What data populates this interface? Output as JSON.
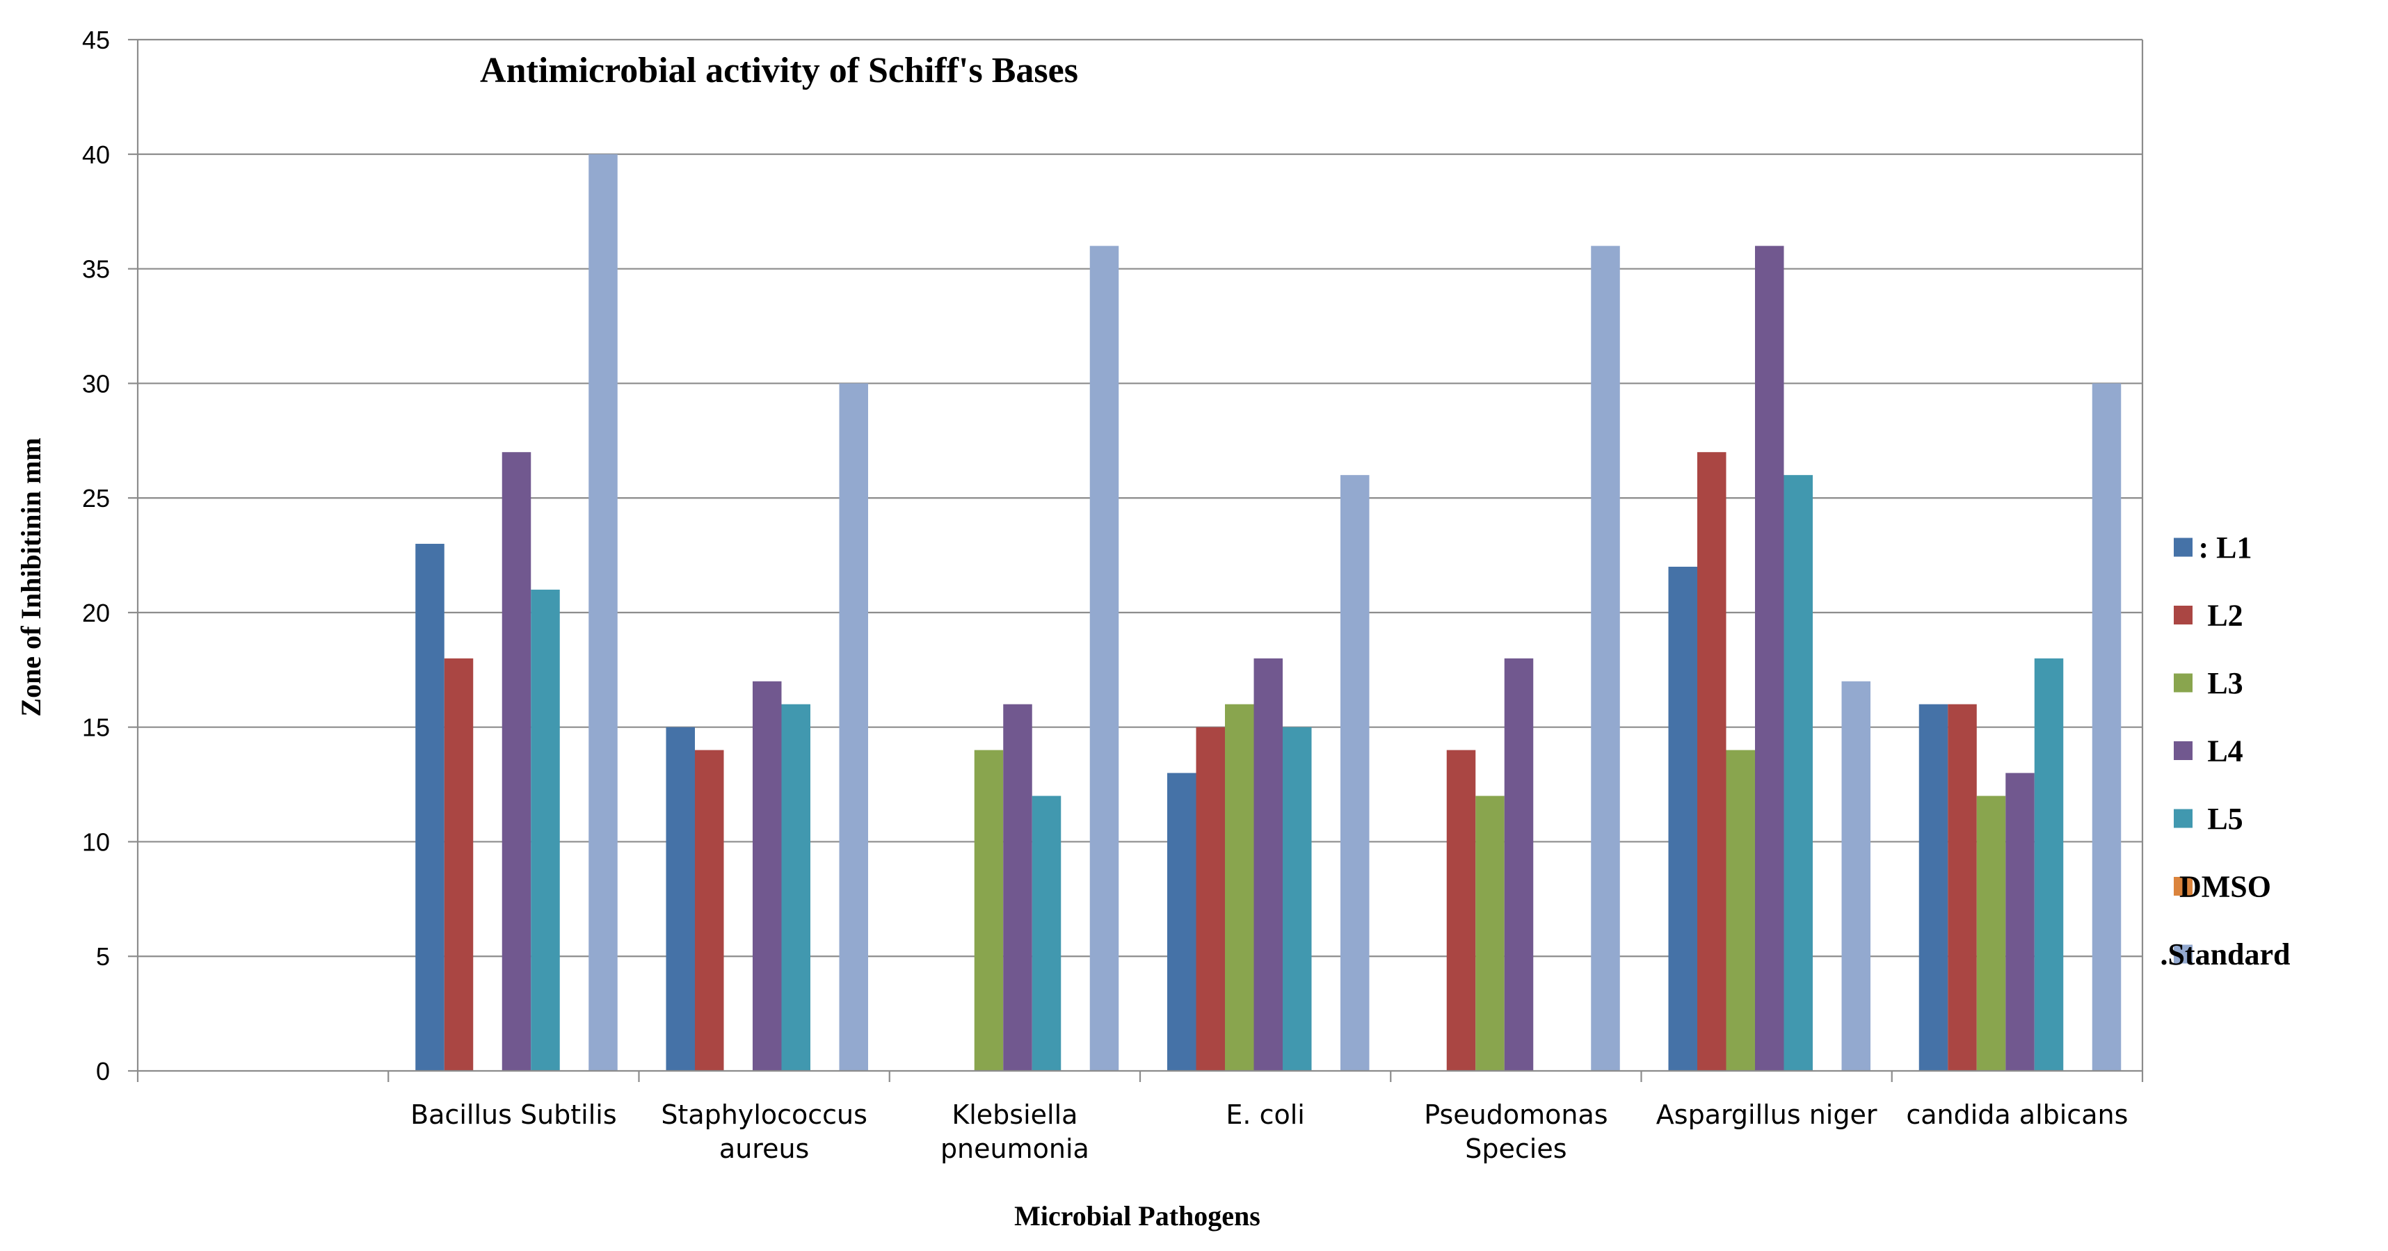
{
  "chart_data": {
    "type": "bar",
    "title": "Antimicrobial  activity of Schiff's Bases",
    "xlabel": "Microbial  Pathogens",
    "ylabel": "Zone of Inhibitinin  mm",
    "ylim": [
      0,
      45
    ],
    "ytick_step": 5,
    "yticks": [
      "0",
      "5",
      "10",
      "15",
      "20",
      "25",
      "30",
      "35",
      "40",
      "45"
    ],
    "grid": true,
    "legend_position": "right",
    "categories": [
      [
        ""
      ],
      [
        "Bacillus Subtilis"
      ],
      [
        "Staphylococcus",
        "aureus"
      ],
      [
        "Klebsiella",
        "pneumonia"
      ],
      [
        "E. coli"
      ],
      [
        "Pseudomonas",
        "Species"
      ],
      [
        "Aspargillus niger"
      ],
      [
        "candida albicans"
      ]
    ],
    "series": [
      {
        "name": "L1",
        "legend_label": ": L1",
        "color": "#4572A7",
        "values": [
          0,
          23,
          15,
          0,
          13,
          0,
          22,
          16
        ]
      },
      {
        "name": "L2",
        "legend_label": "L2",
        "color": "#AA4643",
        "values": [
          0,
          18,
          14,
          0,
          15,
          14,
          27,
          16
        ]
      },
      {
        "name": "L3",
        "legend_label": "L3",
        "color": "#89A54E",
        "values": [
          0,
          0,
          0,
          14,
          16,
          12,
          14,
          12
        ]
      },
      {
        "name": "L4",
        "legend_label": "L4",
        "color": "#71588F",
        "values": [
          0,
          27,
          17,
          16,
          18,
          18,
          36,
          13
        ]
      },
      {
        "name": "L5",
        "legend_label": "L5",
        "color": "#4198AF",
        "values": [
          0,
          21,
          16,
          12,
          15,
          0,
          26,
          18
        ]
      },
      {
        "name": "DMSO",
        "legend_label": "DMSO",
        "color": "#DB843D",
        "values": [
          0,
          0,
          0,
          0,
          0,
          0,
          0,
          0
        ]
      },
      {
        "name": "Standard",
        "legend_label": ".Standard",
        "color": "#93A9CF",
        "values": [
          0,
          40,
          30,
          36,
          26,
          36,
          17,
          30
        ]
      }
    ]
  }
}
